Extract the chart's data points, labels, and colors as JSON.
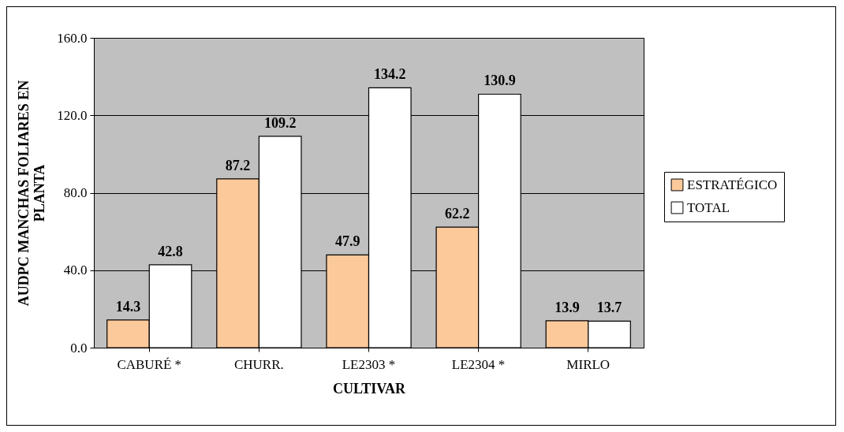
{
  "chart_data": {
    "type": "bar",
    "xlabel": "CULTIVAR",
    "ylabel": "AUDPC MANCHAS FOLIARES EN PLANTA",
    "categories": [
      "CABURÉ *",
      "CHURR.",
      "LE2303 *",
      "LE2304 *",
      "MIRLO"
    ],
    "series": [
      {
        "name": "ESTRATÉGICO",
        "color": "#fcc99a",
        "values": [
          14.3,
          87.2,
          47.9,
          62.2,
          13.9
        ]
      },
      {
        "name": "TOTAL",
        "color": "#ffffff",
        "values": [
          42.8,
          109.2,
          134.2,
          130.9,
          13.7
        ]
      }
    ],
    "ylim": [
      0,
      160
    ],
    "yticks": [
      {
        "value": 0,
        "label": "0.0"
      },
      {
        "value": 40,
        "label": "40.0"
      },
      {
        "value": 80,
        "label": "80.0"
      },
      {
        "value": 120,
        "label": "120.0"
      },
      {
        "value": 160,
        "label": "160.0"
      }
    ],
    "grid": "y",
    "legend": "right",
    "data_labels": true
  }
}
